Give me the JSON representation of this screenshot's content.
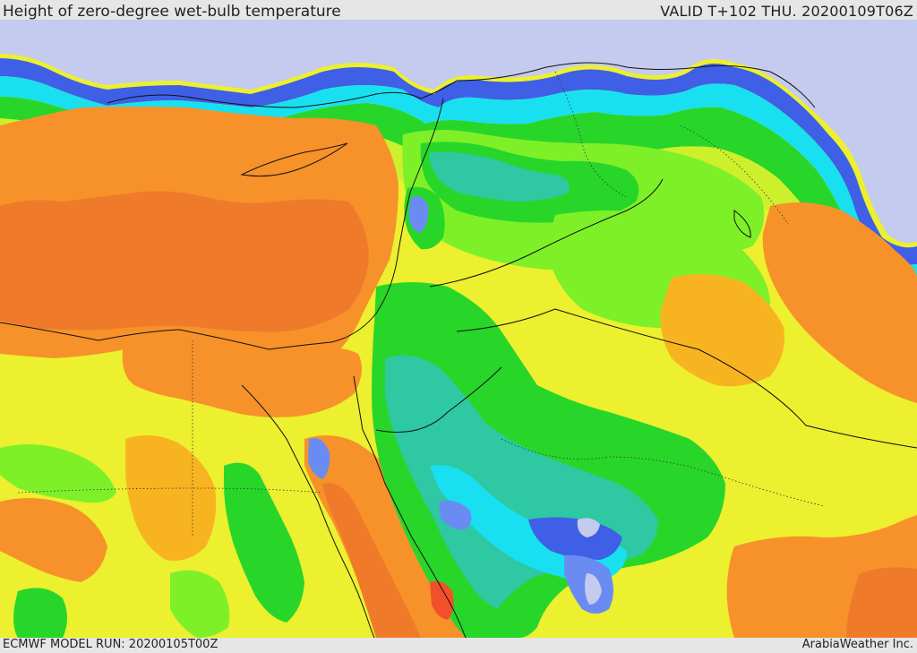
{
  "header": {
    "title": "Height of zero-degree wet-bulb temperature",
    "valid_label": "VALID T+102 THU. 20200109T06Z"
  },
  "footer": {
    "model_run": "ECMWF MODEL RUN: 20200105T00Z",
    "credit": "ArabiaWeather Inc."
  },
  "palette": {
    "lavender": "#c4cbee",
    "blue": "#3f5fe6",
    "light_blue": "#6a8cf2",
    "cyan": "#19e0f0",
    "teal": "#2ec8a2",
    "green": "#28d62a",
    "light_green": "#7ef028",
    "yellow_green": "#cdf02c",
    "yellow": "#ecf02e",
    "orange_yellow": "#f8b420",
    "orange": "#f7922a",
    "dark_orange": "#ef7b2a",
    "red_orange": "#f2502a"
  }
}
